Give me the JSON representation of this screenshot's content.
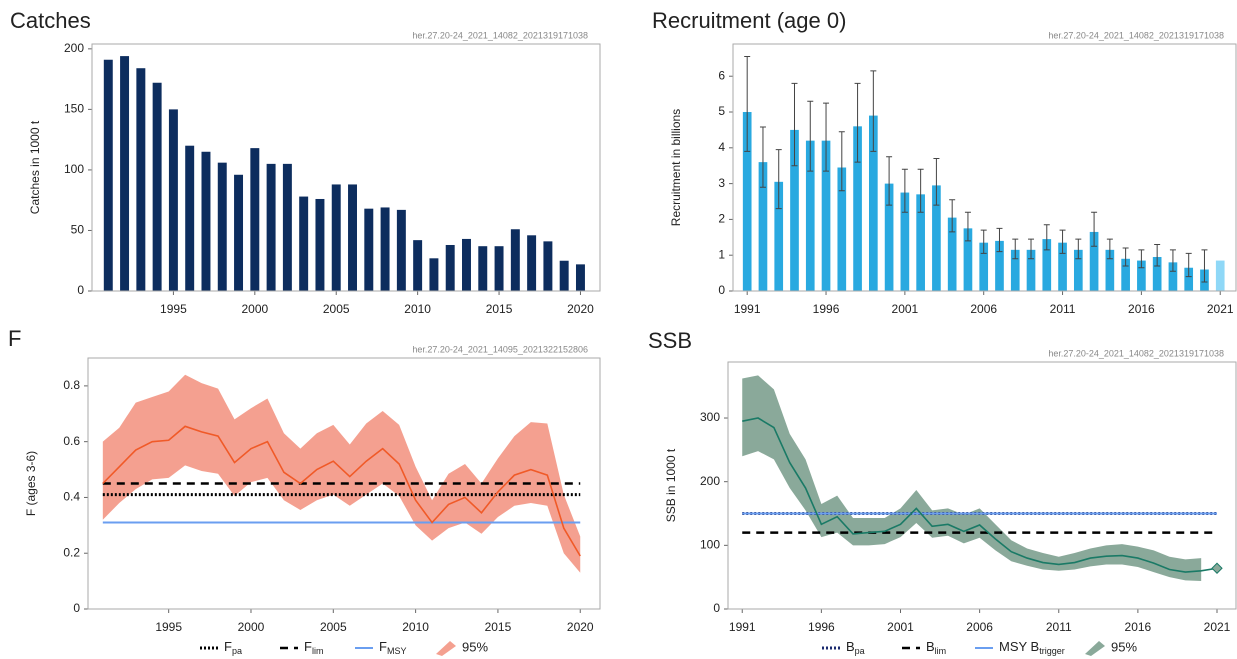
{
  "chart_data": [
    {
      "type": "bar",
      "title": "Catches",
      "title_color": "#1b3a66",
      "subtitle": "her.27.20-24_2021_14082_2021319171038",
      "y_label": "Catches in 1000 t",
      "x": [
        1991,
        1992,
        1993,
        1994,
        1995,
        1996,
        1997,
        1998,
        1999,
        2000,
        2001,
        2002,
        2003,
        2004,
        2005,
        2006,
        2007,
        2008,
        2009,
        2010,
        2011,
        2012,
        2013,
        2014,
        2015,
        2016,
        2017,
        2018,
        2019,
        2020
      ],
      "series": [
        {
          "color": "#0d2d5e",
          "values": [
            191,
            194,
            184,
            172,
            150,
            120,
            115,
            106,
            96,
            118,
            105,
            105,
            78,
            76,
            88,
            88,
            68,
            69,
            67,
            42,
            27,
            38,
            43,
            37,
            37,
            51,
            46,
            41,
            25,
            22
          ]
        }
      ],
      "xlim": [
        1990,
        2021.2
      ],
      "ylim": [
        0,
        204
      ],
      "xticks": [
        1995,
        2000,
        2005,
        2010,
        2015,
        2020
      ],
      "yticks": [
        0,
        50,
        100,
        150,
        200
      ]
    },
    {
      "type": "bar",
      "title": "Recruitment (age 0)",
      "title_color": "#45b4e6",
      "subtitle": "her.27.20-24_2021_14082_2021319171038",
      "y_label": "Recruitment in billions",
      "x": [
        1991,
        1992,
        1993,
        1994,
        1995,
        1996,
        1997,
        1998,
        1999,
        2000,
        2001,
        2002,
        2003,
        2004,
        2005,
        2006,
        2007,
        2008,
        2009,
        2010,
        2011,
        2012,
        2013,
        2014,
        2015,
        2016,
        2017,
        2018,
        2019,
        2020,
        2021
      ],
      "series": [
        {
          "color": "#29a9e0",
          "last_color": "#8fd8f7",
          "values": [
            5.0,
            3.6,
            3.05,
            4.5,
            4.2,
            4.2,
            3.45,
            4.6,
            4.9,
            3.0,
            2.75,
            2.7,
            2.95,
            2.05,
            1.75,
            1.35,
            1.4,
            1.15,
            1.15,
            1.45,
            1.35,
            1.15,
            1.65,
            1.15,
            0.9,
            0.85,
            0.95,
            0.8,
            0.65,
            0.6,
            0.85
          ],
          "lower": [
            3.9,
            2.9,
            2.3,
            3.5,
            3.35,
            3.35,
            2.8,
            3.6,
            3.9,
            2.4,
            2.2,
            2.2,
            2.4,
            1.65,
            1.4,
            1.05,
            1.1,
            0.9,
            0.9,
            1.15,
            1.05,
            0.9,
            1.25,
            0.9,
            0.7,
            0.65,
            0.7,
            0.55,
            0.4,
            0.25,
            null
          ],
          "upper": [
            6.55,
            4.58,
            3.95,
            5.8,
            5.3,
            5.25,
            4.45,
            5.8,
            6.15,
            3.75,
            3.4,
            3.4,
            3.7,
            2.55,
            2.2,
            1.7,
            1.75,
            1.45,
            1.45,
            1.85,
            1.7,
            1.45,
            2.2,
            1.45,
            1.2,
            1.15,
            1.3,
            1.15,
            1.05,
            1.15,
            null
          ]
        }
      ],
      "xlim": [
        1990.1,
        2022
      ],
      "ylim": [
        0,
        6.9
      ],
      "xticks": [
        1991,
        1996,
        2001,
        2006,
        2011,
        2016,
        2021
      ],
      "yticks": [
        0,
        1,
        2,
        3,
        4,
        5,
        6
      ]
    },
    {
      "type": "line",
      "title": "F",
      "title_color": "#e8582a",
      "subtitle": "her.27.20-24_2021_14095_2021322152806",
      "y_label": "F (ages 3-6)",
      "x": [
        1991,
        1992,
        1993,
        1994,
        1995,
        1996,
        1997,
        1998,
        1999,
        2000,
        2001,
        2002,
        2003,
        2004,
        2005,
        2006,
        2007,
        2008,
        2009,
        2010,
        2011,
        2012,
        2013,
        2014,
        2015,
        2016,
        2017,
        2018,
        2019,
        2020
      ],
      "series": [
        {
          "color": "#f05a28",
          "values": [
            0.45,
            0.51,
            0.57,
            0.6,
            0.605,
            0.655,
            0.635,
            0.62,
            0.525,
            0.575,
            0.6,
            0.49,
            0.45,
            0.5,
            0.53,
            0.475,
            0.53,
            0.575,
            0.52,
            0.39,
            0.31,
            0.375,
            0.4,
            0.345,
            0.42,
            0.48,
            0.5,
            0.48,
            0.29,
            0.19
          ]
        }
      ],
      "band": {
        "name": "95%",
        "color": "#f4a090",
        "upper": [
          0.6,
          0.65,
          0.74,
          0.76,
          0.78,
          0.84,
          0.81,
          0.79,
          0.68,
          0.72,
          0.755,
          0.63,
          0.575,
          0.63,
          0.66,
          0.59,
          0.665,
          0.71,
          0.66,
          0.51,
          0.39,
          0.485,
          0.52,
          0.45,
          0.54,
          0.62,
          0.67,
          0.665,
          0.41,
          0.26
        ],
        "lower": [
          0.32,
          0.38,
          0.43,
          0.465,
          0.47,
          0.515,
          0.495,
          0.485,
          0.405,
          0.455,
          0.47,
          0.39,
          0.355,
          0.39,
          0.41,
          0.37,
          0.41,
          0.45,
          0.405,
          0.3,
          0.245,
          0.29,
          0.31,
          0.27,
          0.33,
          0.37,
          0.38,
          0.37,
          0.2,
          0.13
        ]
      },
      "reference_lines": [
        {
          "name": "F",
          "subscript": "pa",
          "value": 0.41,
          "color": "#000000",
          "style": "dotted"
        },
        {
          "name": "F",
          "subscript": "lim",
          "value": 0.45,
          "color": "#000000",
          "style": "dashed"
        },
        {
          "name": "F",
          "subscript": "MSY",
          "value": 0.31,
          "color": "#6a9ef0",
          "style": "solid"
        }
      ],
      "xlim": [
        1990.1,
        2021.2
      ],
      "ylim": [
        0,
        0.9
      ],
      "xticks": [
        1995,
        2000,
        2005,
        2010,
        2015,
        2020
      ],
      "yticks": [
        0,
        0.2,
        0.4,
        0.6,
        0.8
      ]
    },
    {
      "type": "line",
      "title": "SSB",
      "title_color": "#1a8070",
      "subtitle": "her.27.20-24_2021_14082_2021319171038",
      "y_label": "SSB in 1000 t",
      "last_marker": "diamond",
      "x": [
        1991,
        1992,
        1993,
        1994,
        1995,
        1996,
        1997,
        1998,
        1999,
        2000,
        2001,
        2002,
        2003,
        2004,
        2005,
        2006,
        2007,
        2008,
        2009,
        2010,
        2011,
        2012,
        2013,
        2014,
        2015,
        2016,
        2017,
        2018,
        2019,
        2020,
        2021
      ],
      "series": [
        {
          "color": "#1a7a66",
          "values": [
            295,
            300,
            285,
            230,
            190,
            133,
            145,
            118,
            120,
            122,
            133,
            158,
            130,
            133,
            122,
            132,
            110,
            90,
            80,
            73,
            70,
            73,
            80,
            83,
            84,
            80,
            72,
            62,
            58,
            60,
            64
          ]
        }
      ],
      "band": {
        "name": "95%",
        "color": "#8aa99a",
        "upper": [
          362,
          367,
          345,
          275,
          235,
          165,
          178,
          143,
          143,
          143,
          158,
          187,
          155,
          158,
          148,
          158,
          133,
          108,
          95,
          88,
          82,
          88,
          95,
          100,
          102,
          98,
          92,
          82,
          78,
          80,
          null
        ],
        "lower": [
          240,
          248,
          235,
          190,
          155,
          113,
          120,
          100,
          100,
          102,
          113,
          135,
          112,
          115,
          103,
          112,
          92,
          75,
          68,
          62,
          60,
          62,
          67,
          70,
          70,
          66,
          58,
          50,
          45,
          44,
          null
        ]
      },
      "reference_lines": [
        {
          "name": "B",
          "subscript": "pa",
          "value": 150,
          "color": "#1a2a6e",
          "style": "dotted"
        },
        {
          "name": "B",
          "subscript": "lim",
          "value": 120,
          "color": "#000000",
          "style": "dashed"
        },
        {
          "name": "MSY B",
          "subscript": "trigger",
          "value": 150,
          "color": "#6a9ef0",
          "style": "solid"
        }
      ],
      "xlim": [
        1990.1,
        2022.2
      ],
      "ylim": [
        0,
        388
      ],
      "xticks": [
        1991,
        1996,
        2001,
        2006,
        2011,
        2016,
        2021
      ],
      "yticks": [
        0,
        100,
        200,
        300
      ]
    }
  ]
}
